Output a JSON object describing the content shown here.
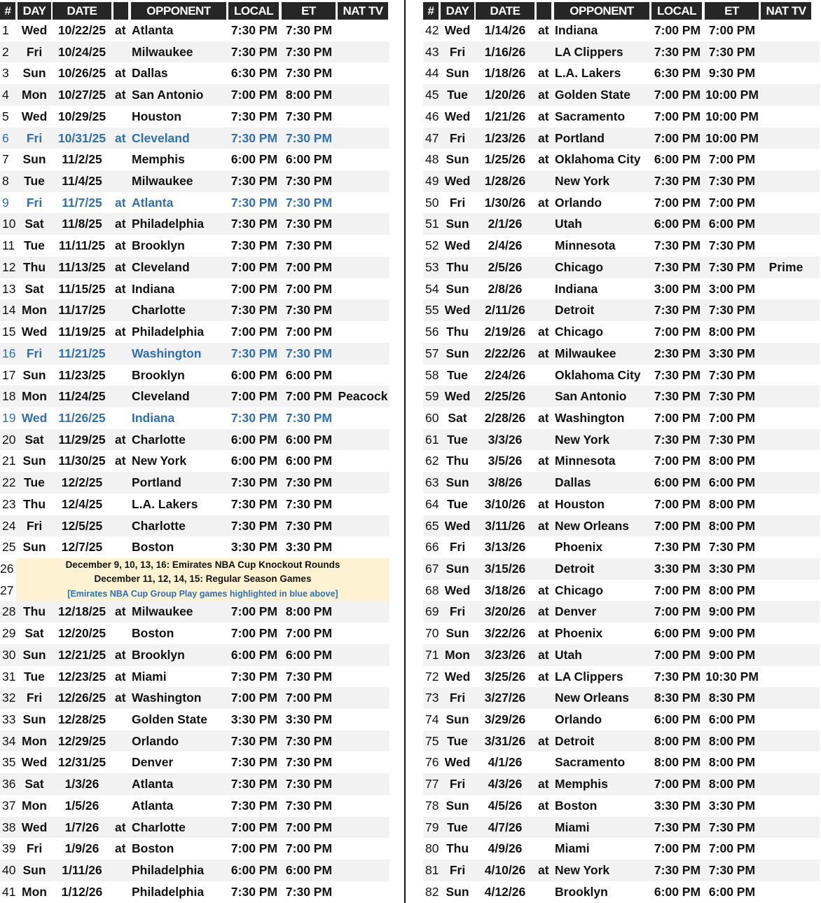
{
  "headers": [
    "#",
    "DAY",
    "DATE",
    "",
    "OPPONENT",
    "LOCAL",
    "ET",
    "NAT TV"
  ],
  "colors": {
    "header_bg": "#262626",
    "cup_highlight": "#2f6fb3",
    "note_bg": "#fdf3d3",
    "stripe": "#f2f2f2"
  },
  "note": {
    "rows": [
      "26",
      "27"
    ],
    "line1": "December 9, 10, 13, 16: Emirates NBA Cup Knockout Rounds",
    "line2": "December 11, 12, 14, 15: Regular Season Games",
    "line3": "[Emirates NBA Cup Group Play games highlighted in blue above]"
  },
  "left_games": [
    [
      "1",
      "Wed",
      "10/22/25",
      "at",
      "Atlanta",
      "7:30 PM",
      "7:30 PM",
      "",
      false
    ],
    [
      "2",
      "Fri",
      "10/24/25",
      "",
      "Milwaukee",
      "7:30 PM",
      "7:30 PM",
      "",
      false
    ],
    [
      "3",
      "Sun",
      "10/26/25",
      "at",
      "Dallas",
      "6:30 PM",
      "7:30 PM",
      "",
      false
    ],
    [
      "4",
      "Mon",
      "10/27/25",
      "at",
      "San Antonio",
      "7:00 PM",
      "8:00 PM",
      "",
      false
    ],
    [
      "5",
      "Wed",
      "10/29/25",
      "",
      "Houston",
      "7:30 PM",
      "7:30 PM",
      "",
      false
    ],
    [
      "6",
      "Fri",
      "10/31/25",
      "at",
      "Cleveland",
      "7:30 PM",
      "7:30 PM",
      "",
      true
    ],
    [
      "7",
      "Sun",
      "11/2/25",
      "",
      "Memphis",
      "6:00 PM",
      "6:00 PM",
      "",
      false
    ],
    [
      "8",
      "Tue",
      "11/4/25",
      "",
      "Milwaukee",
      "7:30 PM",
      "7:30 PM",
      "",
      false
    ],
    [
      "9",
      "Fri",
      "11/7/25",
      "at",
      "Atlanta",
      "7:30 PM",
      "7:30 PM",
      "",
      true
    ],
    [
      "10",
      "Sat",
      "11/8/25",
      "at",
      "Philadelphia",
      "7:30 PM",
      "7:30 PM",
      "",
      false
    ],
    [
      "11",
      "Tue",
      "11/11/25",
      "at",
      "Brooklyn",
      "7:30 PM",
      "7:30 PM",
      "",
      false
    ],
    [
      "12",
      "Thu",
      "11/13/25",
      "at",
      "Cleveland",
      "7:00 PM",
      "7:00 PM",
      "",
      false
    ],
    [
      "13",
      "Sat",
      "11/15/25",
      "at",
      "Indiana",
      "7:00 PM",
      "7:00 PM",
      "",
      false
    ],
    [
      "14",
      "Mon",
      "11/17/25",
      "",
      "Charlotte",
      "7:30 PM",
      "7:30 PM",
      "",
      false
    ],
    [
      "15",
      "Wed",
      "11/19/25",
      "at",
      "Philadelphia",
      "7:00 PM",
      "7:00 PM",
      "",
      false
    ],
    [
      "16",
      "Fri",
      "11/21/25",
      "",
      "Washington",
      "7:30 PM",
      "7:30 PM",
      "",
      true
    ],
    [
      "17",
      "Sun",
      "11/23/25",
      "",
      "Brooklyn",
      "6:00 PM",
      "6:00 PM",
      "",
      false
    ],
    [
      "18",
      "Mon",
      "11/24/25",
      "",
      "Cleveland",
      "7:00 PM",
      "7:00 PM",
      "Peacock",
      false
    ],
    [
      "19",
      "Wed",
      "11/26/25",
      "",
      "Indiana",
      "7:30 PM",
      "7:30 PM",
      "",
      true
    ],
    [
      "20",
      "Sat",
      "11/29/25",
      "at",
      "Charlotte",
      "6:00 PM",
      "6:00 PM",
      "",
      false
    ],
    [
      "21",
      "Sun",
      "11/30/25",
      "at",
      "New York",
      "6:00 PM",
      "6:00 PM",
      "",
      false
    ],
    [
      "22",
      "Tue",
      "12/2/25",
      "",
      "Portland",
      "7:30 PM",
      "7:30 PM",
      "",
      false
    ],
    [
      "23",
      "Thu",
      "12/4/25",
      "",
      "L.A. Lakers",
      "7:30 PM",
      "7:30 PM",
      "",
      false
    ],
    [
      "24",
      "Fri",
      "12/5/25",
      "",
      "Charlotte",
      "7:30 PM",
      "7:30 PM",
      "",
      false
    ],
    [
      "25",
      "Sun",
      "12/7/25",
      "",
      "Boston",
      "3:30 PM",
      "3:30 PM",
      "",
      false
    ],
    "NOTE",
    [
      "28",
      "Thu",
      "12/18/25",
      "at",
      "Milwaukee",
      "7:00 PM",
      "8:00 PM",
      "",
      false
    ],
    [
      "29",
      "Sat",
      "12/20/25",
      "",
      "Boston",
      "7:00 PM",
      "7:00 PM",
      "",
      false
    ],
    [
      "30",
      "Sun",
      "12/21/25",
      "at",
      "Brooklyn",
      "6:00 PM",
      "6:00 PM",
      "",
      false
    ],
    [
      "31",
      "Tue",
      "12/23/25",
      "at",
      "Miami",
      "7:30 PM",
      "7:30 PM",
      "",
      false
    ],
    [
      "32",
      "Fri",
      "12/26/25",
      "at",
      "Washington",
      "7:00 PM",
      "7:00 PM",
      "",
      false
    ],
    [
      "33",
      "Sun",
      "12/28/25",
      "",
      "Golden State",
      "3:30 PM",
      "3:30 PM",
      "",
      false
    ],
    [
      "34",
      "Mon",
      "12/29/25",
      "",
      "Orlando",
      "7:30 PM",
      "7:30 PM",
      "",
      false
    ],
    [
      "35",
      "Wed",
      "12/31/25",
      "",
      "Denver",
      "7:30 PM",
      "7:30 PM",
      "",
      false
    ],
    [
      "36",
      "Sat",
      "1/3/26",
      "",
      "Atlanta",
      "7:30 PM",
      "7:30 PM",
      "",
      false
    ],
    [
      "37",
      "Mon",
      "1/5/26",
      "",
      "Atlanta",
      "7:30 PM",
      "7:30 PM",
      "",
      false
    ],
    [
      "38",
      "Wed",
      "1/7/26",
      "at",
      "Charlotte",
      "7:00 PM",
      "7:00 PM",
      "",
      false
    ],
    [
      "39",
      "Fri",
      "1/9/26",
      "at",
      "Boston",
      "7:00 PM",
      "7:00 PM",
      "",
      false
    ],
    [
      "40",
      "Sun",
      "1/11/26",
      "",
      "Philadelphia",
      "6:00 PM",
      "6:00 PM",
      "",
      false
    ],
    [
      "41",
      "Mon",
      "1/12/26",
      "",
      "Philadelphia",
      "7:30 PM",
      "7:30 PM",
      "",
      false
    ]
  ],
  "right_games": [
    [
      "42",
      "Wed",
      "1/14/26",
      "at",
      "Indiana",
      "7:00 PM",
      "7:00 PM",
      "",
      false
    ],
    [
      "43",
      "Fri",
      "1/16/26",
      "",
      "LA Clippers",
      "7:30 PM",
      "7:30 PM",
      "",
      false
    ],
    [
      "44",
      "Sun",
      "1/18/26",
      "at",
      "L.A. Lakers",
      "6:30 PM",
      "9:30 PM",
      "",
      false
    ],
    [
      "45",
      "Tue",
      "1/20/26",
      "at",
      "Golden State",
      "7:00 PM",
      "10:00 PM",
      "",
      false
    ],
    [
      "46",
      "Wed",
      "1/21/26",
      "at",
      "Sacramento",
      "7:00 PM",
      "10:00 PM",
      "",
      false
    ],
    [
      "47",
      "Fri",
      "1/23/26",
      "at",
      "Portland",
      "7:00 PM",
      "10:00 PM",
      "",
      false
    ],
    [
      "48",
      "Sun",
      "1/25/26",
      "at",
      "Oklahoma City",
      "6:00 PM",
      "7:00 PM",
      "",
      false
    ],
    [
      "49",
      "Wed",
      "1/28/26",
      "",
      "New York",
      "7:30 PM",
      "7:30 PM",
      "",
      false
    ],
    [
      "50",
      "Fri",
      "1/30/26",
      "at",
      "Orlando",
      "7:00 PM",
      "7:00 PM",
      "",
      false
    ],
    [
      "51",
      "Sun",
      "2/1/26",
      "",
      "Utah",
      "6:00 PM",
      "6:00 PM",
      "",
      false
    ],
    [
      "52",
      "Wed",
      "2/4/26",
      "",
      "Minnesota",
      "7:30 PM",
      "7:30 PM",
      "",
      false
    ],
    [
      "53",
      "Thu",
      "2/5/26",
      "",
      "Chicago",
      "7:30 PM",
      "7:30 PM",
      "Prime",
      false
    ],
    [
      "54",
      "Sun",
      "2/8/26",
      "",
      "Indiana",
      "3:00 PM",
      "3:00 PM",
      "",
      false
    ],
    [
      "55",
      "Wed",
      "2/11/26",
      "",
      "Detroit",
      "7:30 PM",
      "7:30 PM",
      "",
      false
    ],
    [
      "56",
      "Thu",
      "2/19/26",
      "at",
      "Chicago",
      "7:00 PM",
      "8:00 PM",
      "",
      false
    ],
    [
      "57",
      "Sun",
      "2/22/26",
      "at",
      "Milwaukee",
      "2:30 PM",
      "3:30 PM",
      "",
      false
    ],
    [
      "58",
      "Tue",
      "2/24/26",
      "",
      "Oklahoma City",
      "7:30 PM",
      "7:30 PM",
      "",
      false
    ],
    [
      "59",
      "Wed",
      "2/25/26",
      "",
      "San Antonio",
      "7:30 PM",
      "7:30 PM",
      "",
      false
    ],
    [
      "60",
      "Sat",
      "2/28/26",
      "at",
      "Washington",
      "7:00 PM",
      "7:00 PM",
      "",
      false
    ],
    [
      "61",
      "Tue",
      "3/3/26",
      "",
      "New York",
      "7:30 PM",
      "7:30 PM",
      "",
      false
    ],
    [
      "62",
      "Thu",
      "3/5/26",
      "at",
      "Minnesota",
      "7:00 PM",
      "8:00 PM",
      "",
      false
    ],
    [
      "63",
      "Sun",
      "3/8/26",
      "",
      "Dallas",
      "6:00 PM",
      "6:00 PM",
      "",
      false
    ],
    [
      "64",
      "Tue",
      "3/10/26",
      "at",
      "Houston",
      "7:00 PM",
      "8:00 PM",
      "",
      false
    ],
    [
      "65",
      "Wed",
      "3/11/26",
      "at",
      "New Orleans",
      "7:00 PM",
      "8:00 PM",
      "",
      false
    ],
    [
      "66",
      "Fri",
      "3/13/26",
      "",
      "Phoenix",
      "7:30 PM",
      "7:30 PM",
      "",
      false
    ],
    [
      "67",
      "Sun",
      "3/15/26",
      "",
      "Detroit",
      "3:30 PM",
      "3:30 PM",
      "",
      false
    ],
    [
      "68",
      "Wed",
      "3/18/26",
      "at",
      "Chicago",
      "7:00 PM",
      "8:00 PM",
      "",
      false
    ],
    [
      "69",
      "Fri",
      "3/20/26",
      "at",
      "Denver",
      "7:00 PM",
      "9:00 PM",
      "",
      false
    ],
    [
      "70",
      "Sun",
      "3/22/26",
      "at",
      "Phoenix",
      "6:00 PM",
      "9:00 PM",
      "",
      false
    ],
    [
      "71",
      "Mon",
      "3/23/26",
      "at",
      "Utah",
      "7:00 PM",
      "9:00 PM",
      "",
      false
    ],
    [
      "72",
      "Wed",
      "3/25/26",
      "at",
      "LA Clippers",
      "7:30 PM",
      "10:30 PM",
      "",
      false
    ],
    [
      "73",
      "Fri",
      "3/27/26",
      "",
      "New Orleans",
      "8:30 PM",
      "8:30 PM",
      "",
      false
    ],
    [
      "74",
      "Sun",
      "3/29/26",
      "",
      "Orlando",
      "6:00 PM",
      "6:00 PM",
      "",
      false
    ],
    [
      "75",
      "Tue",
      "3/31/26",
      "at",
      "Detroit",
      "8:00 PM",
      "8:00 PM",
      "",
      false
    ],
    [
      "76",
      "Wed",
      "4/1/26",
      "",
      "Sacramento",
      "8:00 PM",
      "8:00 PM",
      "",
      false
    ],
    [
      "77",
      "Fri",
      "4/3/26",
      "at",
      "Memphis",
      "7:00 PM",
      "8:00 PM",
      "",
      false
    ],
    [
      "78",
      "Sun",
      "4/5/26",
      "at",
      "Boston",
      "3:30 PM",
      "3:30 PM",
      "",
      false
    ],
    [
      "79",
      "Tue",
      "4/7/26",
      "",
      "Miami",
      "7:30 PM",
      "7:30 PM",
      "",
      false
    ],
    [
      "80",
      "Thu",
      "4/9/26",
      "",
      "Miami",
      "7:00 PM",
      "7:00 PM",
      "",
      false
    ],
    [
      "81",
      "Fri",
      "4/10/26",
      "at",
      "New York",
      "7:30 PM",
      "7:30 PM",
      "",
      false
    ],
    [
      "82",
      "Sun",
      "4/12/26",
      "",
      "Brooklyn",
      "6:00 PM",
      "6:00 PM",
      "",
      false
    ]
  ]
}
